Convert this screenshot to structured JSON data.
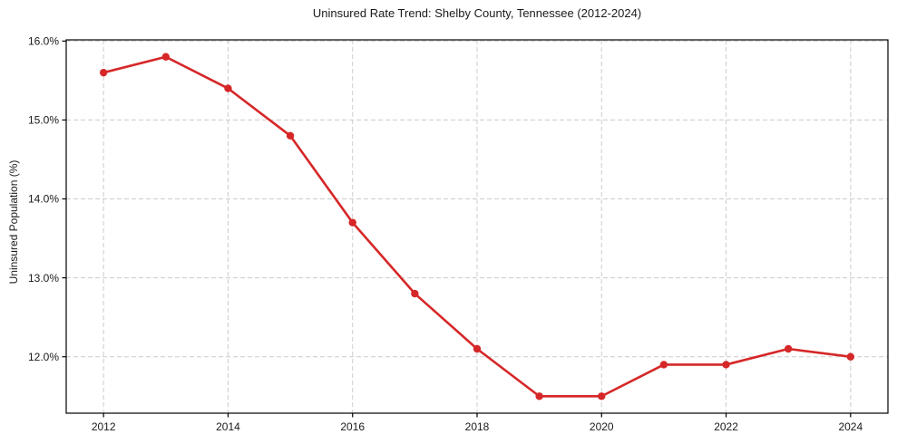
{
  "chart_data": {
    "type": "line",
    "title": "Uninsured Rate Trend: Shelby County, Tennessee (2012-2024)",
    "xlabel": "",
    "ylabel": "Uninsured Population (%)",
    "x": [
      2012,
      2013,
      2014,
      2015,
      2016,
      2017,
      2018,
      2019,
      2020,
      2021,
      2022,
      2023,
      2024
    ],
    "values": [
      15.6,
      15.8,
      15.4,
      14.8,
      13.7,
      12.8,
      12.1,
      11.5,
      11.5,
      11.9,
      11.9,
      12.1,
      12.0
    ],
    "xticks": {
      "values": [
        2012,
        2014,
        2016,
        2018,
        2020,
        2022,
        2024
      ],
      "labels": [
        "2012",
        "2014",
        "2016",
        "2018",
        "2020",
        "2022",
        "2024"
      ]
    },
    "yticks": {
      "values": [
        12,
        13,
        14,
        15,
        16
      ],
      "labels": [
        "12.0%",
        "13.0%",
        "14.0%",
        "15.0%",
        "16.0%"
      ]
    },
    "xlim": [
      2011.4,
      2024.6
    ],
    "ylim": [
      11.285,
      16.015
    ],
    "grid": true,
    "legend_position": "none",
    "line_color": "#d62728",
    "marker": "circle",
    "grid_color": "#cccccc",
    "spine_color": "#000000",
    "text_color": "#1a1a1a",
    "background_color": "#ffffff"
  }
}
